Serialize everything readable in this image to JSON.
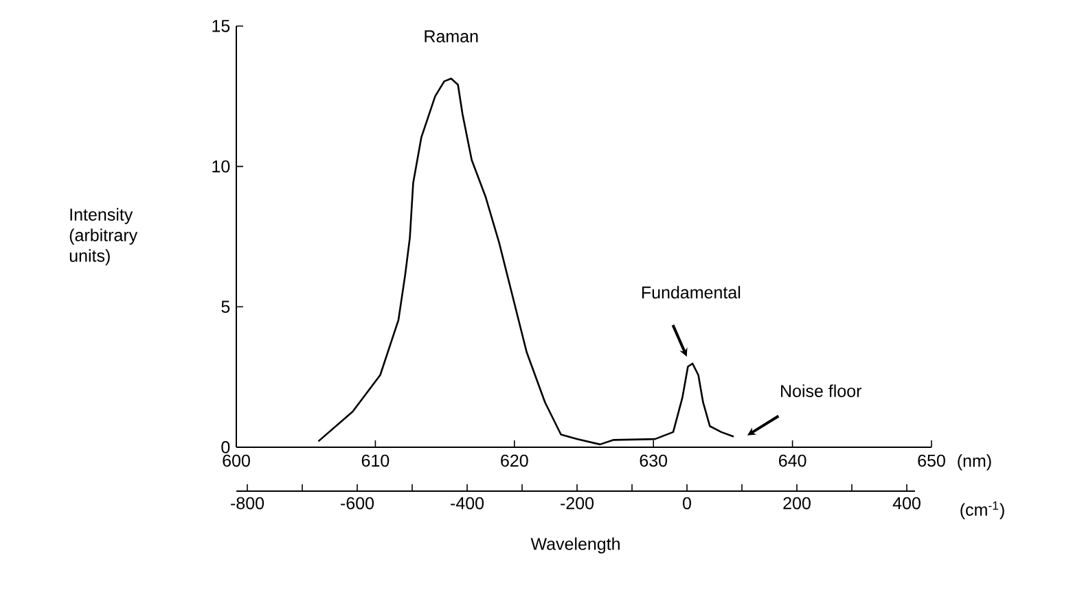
{
  "chart_data": {
    "type": "line",
    "xlabel": "Wavelength",
    "ylabel": "Intensity (arbitrary units)",
    "x": [
      605.9,
      608.37,
      610.35,
      611.66,
      612.15,
      612.48,
      612.72,
      613.31,
      614.3,
      614.95,
      615.45,
      615.94,
      616.27,
      616.93,
      617.92,
      618.9,
      619.89,
      620.88,
      622.2,
      623.35,
      624.5,
      626.16,
      627.14,
      630.11,
      631.42,
      632.08,
      632.48,
      632.81,
      633.23,
      633.57,
      634.06,
      634.88,
      635.77
    ],
    "series": [
      {
        "color": "#000000",
        "values": [
          0.21,
          1.27,
          2.57,
          4.53,
          6.16,
          7.46,
          9.41,
          11.04,
          12.5,
          13.03,
          13.13,
          12.91,
          11.86,
          10.23,
          8.93,
          7.29,
          5.34,
          3.39,
          1.6,
          0.45,
          0.29,
          0.1,
          0.26,
          0.29,
          0.54,
          1.76,
          2.87,
          2.98,
          2.57,
          1.6,
          0.75,
          0.54,
          0.38
        ]
      }
    ],
    "xlim": [
      600,
      650
    ],
    "xticks": [
      600,
      610,
      620,
      630,
      640,
      650
    ],
    "ylim": [
      0,
      15
    ],
    "yticks": [
      0,
      5,
      10,
      15
    ],
    "x2lim": [
      -820,
      415
    ],
    "x2ticks": [
      -800,
      -600,
      -400,
      -200,
      0,
      200,
      400
    ],
    "annotations": [
      {
        "text": "Raman",
        "x": 615.45,
        "y": 13.13
      },
      "Fundamental",
      "Noise floor",
      "(nm)",
      "(cm$^{-1}$)"
    ]
  }
}
